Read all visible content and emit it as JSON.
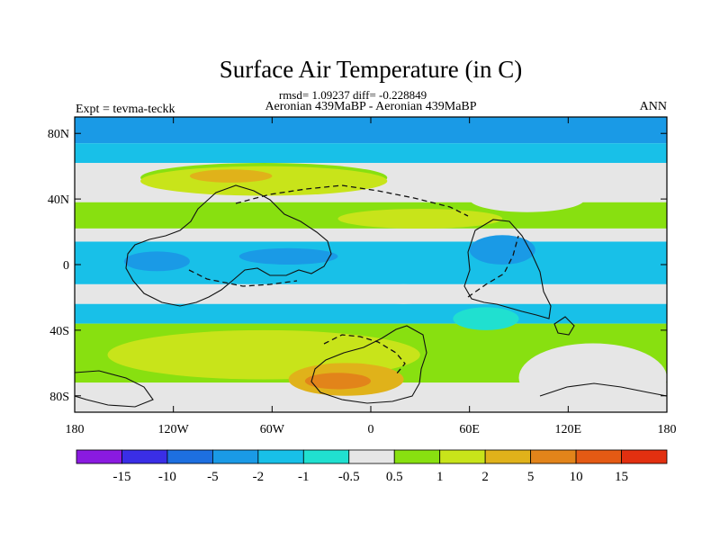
{
  "chart_data": {
    "type": "heatmap",
    "title": "Surface Air Temperature (in C)",
    "stats_line": "rmsd= 1.09237 diff= -0.228849",
    "left_label": "Expt = tevma-teckk",
    "center_label": "Aeronian 439MaBP - Aeronian 439MaBP",
    "right_label": "ANN",
    "x_ticks": [
      "180",
      "120W",
      "60W",
      "0",
      "60E",
      "120E",
      "180"
    ],
    "y_ticks": [
      "80N",
      "40N",
      "0",
      "40S",
      "80S"
    ],
    "xlim": [
      -180,
      180
    ],
    "ylim": [
      -90,
      90
    ],
    "colorbar": {
      "labels": [
        "-15",
        "-10",
        "-5",
        "-2",
        "-1",
        "-0.5",
        "0.5",
        "1",
        "2",
        "5",
        "10",
        "15"
      ],
      "colors": [
        "#8a1ae0",
        "#3a2ee6",
        "#1d6fe0",
        "#1a9ae6",
        "#18c0e8",
        "#20e0d0",
        "#e6e6e6",
        "#88e010",
        "#c8e41a",
        "#e0b21a",
        "#e2841a",
        "#e45a14",
        "#e23010"
      ]
    },
    "bands": [
      {
        "lat": [
          74,
          90
        ],
        "level": 3
      },
      {
        "lat": [
          62,
          74
        ],
        "level": 4
      },
      {
        "lat": [
          38,
          62
        ],
        "level": 6
      },
      {
        "lat": [
          22,
          38
        ],
        "level": 7
      },
      {
        "lat": [
          14,
          22
        ],
        "level": 6
      },
      {
        "lat": [
          -12,
          14
        ],
        "level": 4
      },
      {
        "lat": [
          -24,
          -12
        ],
        "level": 6
      },
      {
        "lat": [
          -36,
          -24
        ],
        "level": 4
      },
      {
        "lat": [
          -72,
          -36
        ],
        "level": 7
      },
      {
        "lat": [
          -90,
          -72
        ],
        "level": 6
      }
    ],
    "blobs": [
      {
        "lon": [
          -140,
          10
        ],
        "lat": [
          44,
          62
        ],
        "level": 7
      },
      {
        "lon": [
          -140,
          10
        ],
        "lat": [
          42,
          60
        ],
        "level": 8
      },
      {
        "lon": [
          -110,
          -60
        ],
        "lat": [
          50,
          58
        ],
        "level": 9
      },
      {
        "lon": [
          -20,
          80
        ],
        "lat": [
          22,
          34
        ],
        "level": 8
      },
      {
        "lon": [
          60,
          130
        ],
        "lat": [
          32,
          48
        ],
        "level": 6
      },
      {
        "lon": [
          -150,
          -110
        ],
        "lat": [
          -4,
          8
        ],
        "level": 3
      },
      {
        "lon": [
          -80,
          -20
        ],
        "lat": [
          0,
          10
        ],
        "level": 3
      },
      {
        "lon": [
          60,
          100
        ],
        "lat": [
          0,
          18
        ],
        "level": 3
      },
      {
        "lon": [
          -10,
          50
        ],
        "lat": [
          -24,
          -12
        ],
        "level": 6
      },
      {
        "lon": [
          50,
          90
        ],
        "lat": [
          -40,
          -26
        ],
        "level": 5
      },
      {
        "lon": [
          -160,
          30
        ],
        "lat": [
          -70,
          -40
        ],
        "level": 8
      },
      {
        "lon": [
          -50,
          20
        ],
        "lat": [
          -80,
          -60
        ],
        "level": 9
      },
      {
        "lon": [
          -40,
          0
        ],
        "lat": [
          -76,
          -66
        ],
        "level": 10
      },
      {
        "lon": [
          90,
          180
        ],
        "lat": [
          -90,
          -48
        ],
        "level": 6
      }
    ]
  }
}
